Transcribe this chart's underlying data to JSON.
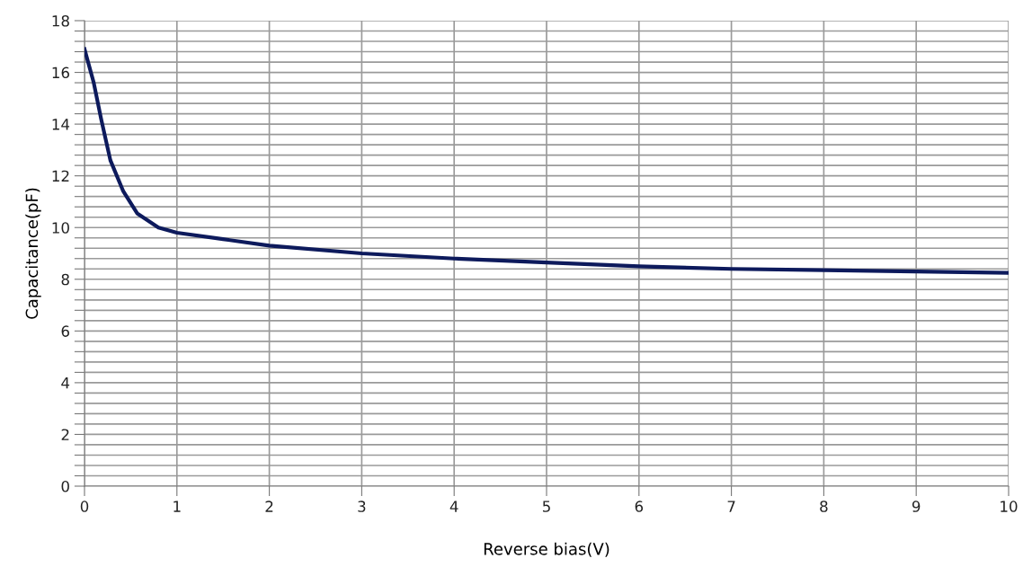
{
  "chart_data": {
    "type": "line",
    "xlabel": "Reverse bias(V)",
    "ylabel": "Capacitance(pF)",
    "x": [
      0,
      0.1,
      0.18,
      0.28,
      0.42,
      0.57,
      0.8,
      1,
      1.5,
      2,
      3,
      4,
      5,
      6,
      7,
      8,
      9,
      10
    ],
    "series": [
      {
        "color": "#0d1a5c",
        "values": [
          16.9,
          15.6,
          14.2,
          12.6,
          11.4,
          10.55,
          10.0,
          9.8,
          9.55,
          9.3,
          9.0,
          8.8,
          8.65,
          8.5,
          8.4,
          8.35,
          8.3,
          8.25
        ]
      }
    ],
    "xlim": [
      0,
      10
    ],
    "ylim": [
      0,
      18
    ],
    "xticks": [
      0,
      1,
      2,
      3,
      4,
      5,
      6,
      7,
      8,
      9,
      10
    ],
    "yticks": [
      0,
      {
        "value": 0.4,
        "label": null
      },
      {
        "value": 0.8,
        "label": null
      },
      {
        "value": 1.2,
        "label": null
      },
      {
        "value": 1.6,
        "label": null
      },
      2,
      {
        "value": 2.4,
        "label": null
      },
      {
        "value": 2.8,
        "label": null
      },
      {
        "value": 3.2,
        "label": null
      },
      {
        "value": 3.6,
        "label": null
      },
      4,
      {
        "value": 4.4,
        "label": null
      },
      {
        "value": 4.8,
        "label": null
      },
      {
        "value": 5.2,
        "label": null
      },
      {
        "value": 5.6,
        "label": null
      },
      6,
      {
        "value": 6.4,
        "label": null
      },
      {
        "value": 6.8,
        "label": null
      },
      {
        "value": 7.2,
        "label": null
      },
      {
        "value": 7.6,
        "label": null
      },
      8,
      {
        "value": 8.4,
        "label": null
      },
      {
        "value": 8.8,
        "label": null
      },
      {
        "value": 9.2,
        "label": null
      },
      {
        "value": 9.6,
        "label": null
      },
      10,
      {
        "value": 10.4,
        "label": null
      },
      {
        "value": 10.8,
        "label": null
      },
      {
        "value": 11.2,
        "label": null
      },
      {
        "value": 11.6,
        "label": null
      },
      12,
      {
        "value": 12.4,
        "label": null
      },
      {
        "value": 12.8,
        "label": null
      },
      {
        "value": 13.2,
        "label": null
      },
      {
        "value": 13.6,
        "label": null
      },
      14,
      {
        "value": 14.4,
        "label": null
      },
      {
        "value": 14.8,
        "label": null
      },
      {
        "value": 15.2,
        "label": null
      },
      {
        "value": 15.6,
        "label": null
      },
      16,
      {
        "value": 16.4,
        "label": null
      },
      {
        "value": 16.8,
        "label": null
      },
      {
        "value": 17.2,
        "label": null
      },
      {
        "value": 17.6,
        "label": null
      },
      18
    ],
    "grid": true,
    "marker": "none",
    "line_style": "solid"
  }
}
